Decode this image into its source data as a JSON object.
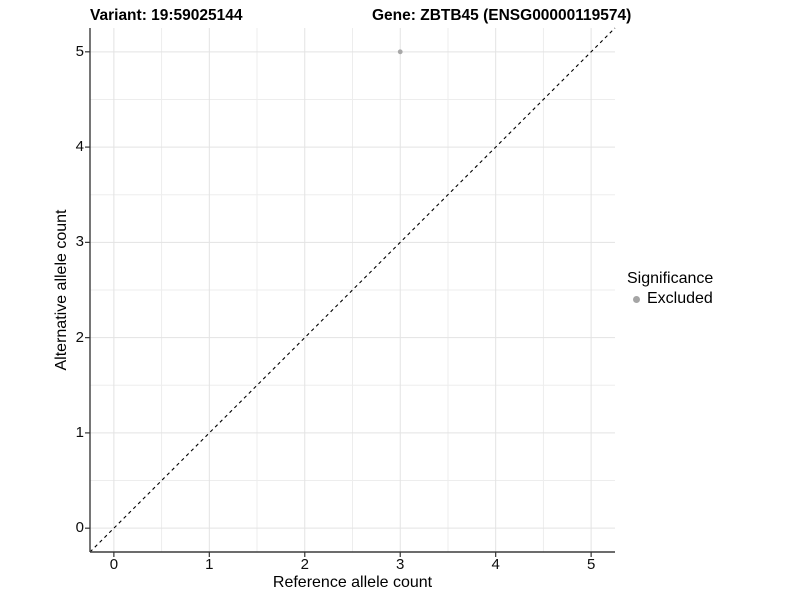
{
  "chart_data": {
    "type": "scatter",
    "title_left": "Variant: 19:59025144",
    "title_right": "Gene: ZBTB45 (ENSG00000119574)",
    "xlabel": "Reference allele count",
    "ylabel": "Alternative allele count",
    "xlim": [
      -0.25,
      5.25
    ],
    "ylim": [
      -0.25,
      5.25
    ],
    "x_ticks": [
      0,
      1,
      2,
      3,
      4,
      5
    ],
    "y_ticks": [
      0,
      1,
      2,
      3,
      4,
      5
    ],
    "grid": true,
    "minor_grid": "midpoints",
    "points": [
      {
        "x": 3,
        "y": 5,
        "series": "Excluded",
        "color": "#a8a8a8",
        "radius": 2.4
      }
    ],
    "reference_line": {
      "kind": "identity",
      "slope": 1,
      "intercept": 0,
      "style": "dashed",
      "color": "#000000"
    },
    "legend": {
      "title": "Significance",
      "position": "right",
      "items": [
        {
          "label": "Excluded",
          "color": "#a5a5a5"
        }
      ]
    },
    "colors": {
      "background": "#ffffff",
      "grid_major": "#e3e3e3",
      "grid_minor": "#ededed",
      "axis_line": "#3c3c3c",
      "tick_mark": "#333333",
      "tick_label": "#0d0d0d",
      "title": "#000000"
    }
  }
}
